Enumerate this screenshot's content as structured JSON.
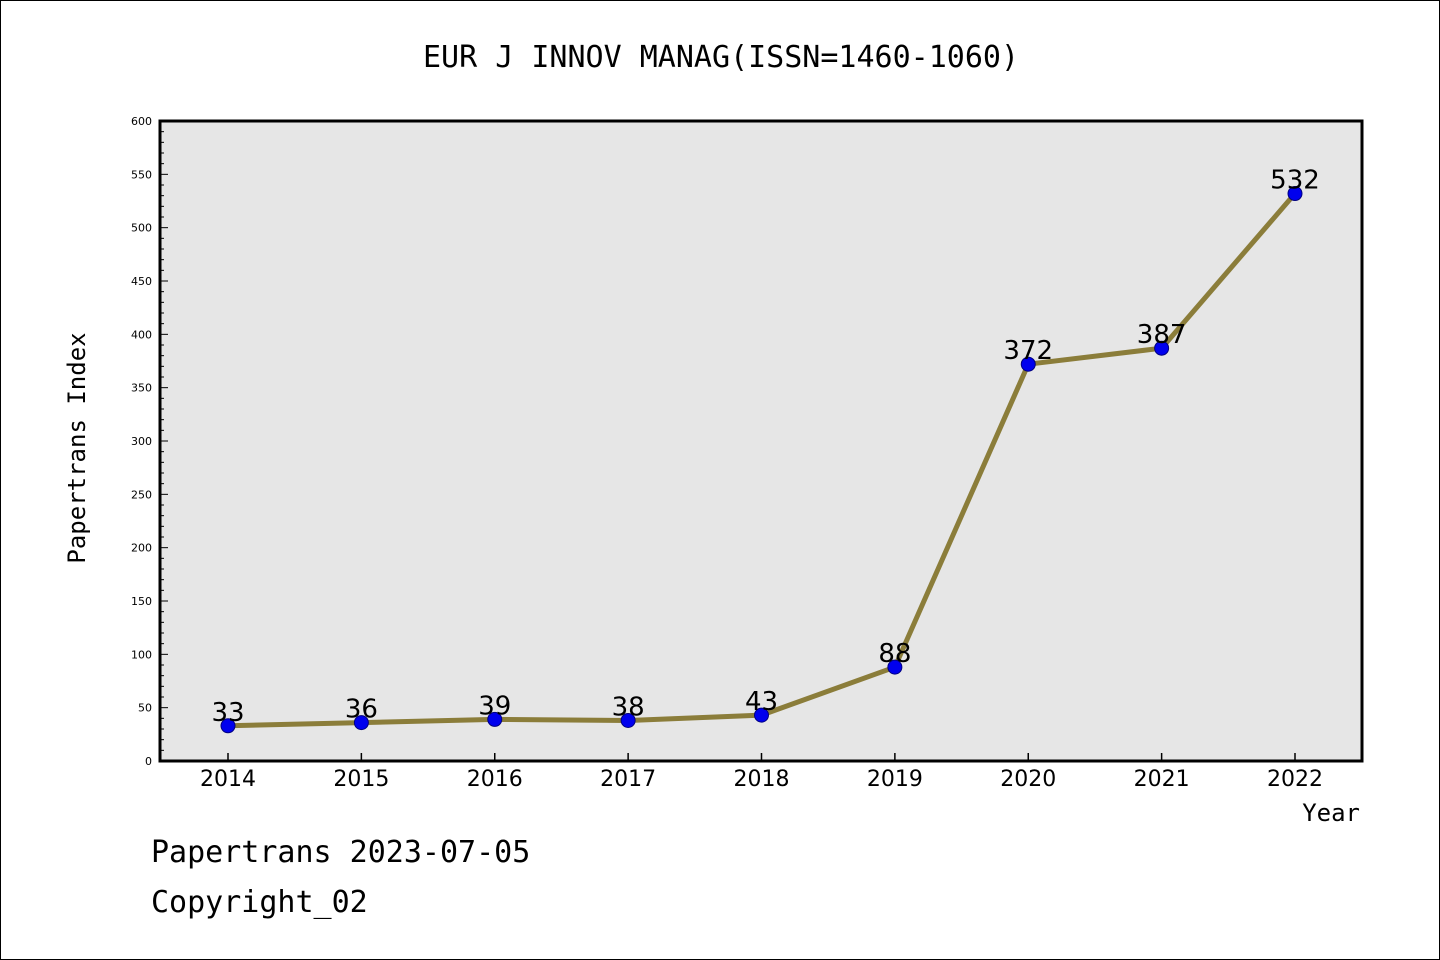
{
  "chart_data": {
    "type": "line",
    "title": "EUR J INNOV MANAG(ISSN=1460-1060)",
    "xlabel": "Year",
    "ylabel": "Papertrans Index",
    "categories": [
      "2014",
      "2015",
      "2016",
      "2017",
      "2018",
      "2019",
      "2020",
      "2021",
      "2022"
    ],
    "series": [
      {
        "values": [
          33,
          36,
          39,
          38,
          43,
          88,
          372,
          387,
          532
        ]
      }
    ],
    "data_labels": [
      "33",
      "36",
      "39",
      "38",
      "43",
      "88",
      "372",
      "387",
      "532"
    ],
    "ylim": [
      0,
      600
    ],
    "yticks": [
      0,
      50,
      100,
      150,
      200,
      250,
      300,
      350,
      400,
      450,
      500,
      550,
      600
    ],
    "grid": false,
    "legend": "none",
    "colors": {
      "line": "#8b7d3a",
      "marker_fill": "#0000ee",
      "marker_edge": "#000080",
      "plot_background": "#e6e6e6",
      "axes": "#000000"
    }
  },
  "footer": {
    "source": "Papertrans 2023-07-05",
    "copyright": "Copyright_02"
  }
}
